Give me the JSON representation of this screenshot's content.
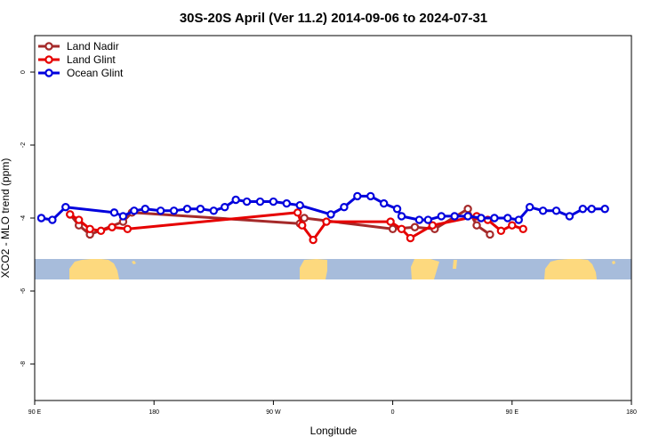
{
  "chart_data": {
    "type": "line",
    "title": "30S-20S April (Ver 11.2)   2014-09-06 to 2024-07-31",
    "xlabel": "Longitude",
    "ylabel": "XCO2 - MLO trend (ppm)",
    "xlim": [
      -90,
      180
    ],
    "ylim": [
      -9,
      1
    ],
    "grid": false,
    "legend_position": "top-left",
    "x_ticks": [
      {
        "value": -90,
        "label": "90 E"
      },
      {
        "value": -36,
        "label": "180"
      },
      {
        "value": 18,
        "label": "90 W"
      },
      {
        "value": 72,
        "label": "0"
      },
      {
        "value": 126,
        "label": "90 E"
      },
      {
        "value": 180,
        "label": "180"
      }
    ],
    "y_ticks": [
      0,
      -2,
      -4,
      -6,
      -8
    ],
    "land_band": {
      "y_top": -5.15,
      "y_bottom": -5.65,
      "ocean_color": "#a7bcdb",
      "land_color": "#fdd97e"
    },
    "series": [
      {
        "name": "Land Nadir",
        "color": "#a52a2a",
        "x": [
          -74,
          -70,
          -65,
          -50,
          -46,
          30,
          32,
          72,
          82,
          91,
          106,
          110,
          116
        ],
        "y": [
          -3.9,
          -4.2,
          -4.45,
          -4.1,
          -3.85,
          -4.15,
          -4.0,
          -4.3,
          -4.25,
          -4.3,
          -3.75,
          -4.2,
          -4.45
        ]
      },
      {
        "name": "Land Glint",
        "color": "#e60000",
        "x": [
          -74,
          -70,
          -65,
          -60,
          -55,
          -48,
          29,
          31,
          36,
          42,
          71,
          76,
          80,
          90,
          110,
          115,
          121,
          126,
          131
        ],
        "y": [
          -3.9,
          -4.05,
          -4.3,
          -4.35,
          -4.25,
          -4.3,
          -3.85,
          -4.2,
          -4.6,
          -4.1,
          -4.1,
          -4.3,
          -4.55,
          -4.2,
          -3.95,
          -4.05,
          -4.35,
          -4.2,
          -4.3
        ]
      },
      {
        "name": "Ocean Glint",
        "color": "#0000dd",
        "x": [
          -87,
          -82,
          -76,
          -54,
          -50,
          -45,
          -40,
          -33,
          -27,
          -21,
          -15,
          -9,
          -4,
          1,
          6,
          12,
          18,
          24,
          30,
          44,
          50,
          56,
          62,
          68,
          74,
          76,
          84,
          88,
          94,
          100,
          106,
          112,
          118,
          124,
          129,
          134,
          140,
          146,
          152,
          158,
          162,
          168
        ],
        "y": [
          -4.0,
          -4.05,
          -3.7,
          -3.85,
          -3.95,
          -3.8,
          -3.75,
          -3.8,
          -3.8,
          -3.75,
          -3.75,
          -3.8,
          -3.7,
          -3.5,
          -3.55,
          -3.55,
          -3.55,
          -3.6,
          -3.65,
          -3.9,
          -3.7,
          -3.4,
          -3.4,
          -3.6,
          -3.75,
          -3.95,
          -4.05,
          -4.05,
          -3.95,
          -3.95,
          -3.95,
          -4.0,
          -4.0,
          -4.0,
          -4.05,
          -3.7,
          -3.8,
          -3.8,
          -3.95,
          -3.75,
          -3.75,
          -3.75
        ]
      }
    ]
  }
}
